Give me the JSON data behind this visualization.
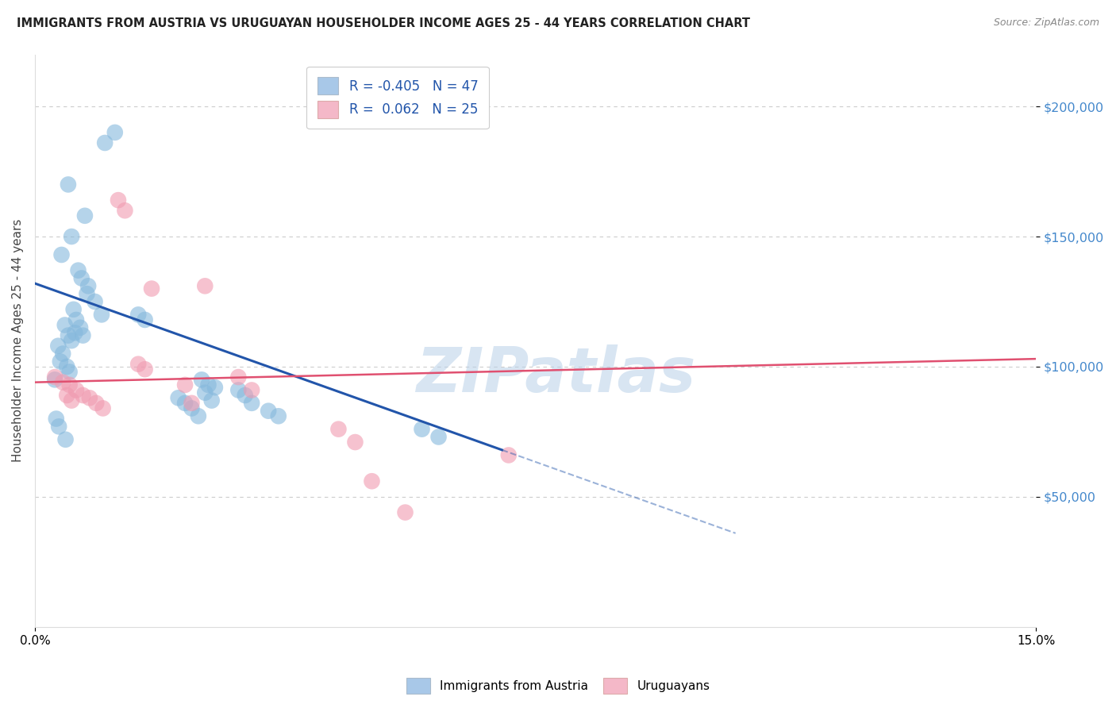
{
  "title": "IMMIGRANTS FROM AUSTRIA VS URUGUAYAN HOUSEHOLDER INCOME AGES 25 - 44 YEARS CORRELATION CHART",
  "source": "Source: ZipAtlas.com",
  "ylabel": "Householder Income Ages 25 - 44 years",
  "xlim": [
    0.0,
    15.0
  ],
  "ylim": [
    0,
    220000
  ],
  "yticks": [
    50000,
    100000,
    150000,
    200000
  ],
  "ytick_labels": [
    "$50,000",
    "$100,000",
    "$150,000",
    "$200,000"
  ],
  "xticks": [
    0.0,
    15.0
  ],
  "xtick_labels": [
    "0.0%",
    "15.0%"
  ],
  "legend1_label": "R = -0.405   N = 47",
  "legend2_label": "R =  0.062   N = 25",
  "legend1_color": "#a8c8e8",
  "legend2_color": "#f4b8c8",
  "scatter_blue_color": "#85b8dc",
  "scatter_pink_color": "#f09ab0",
  "line_blue_color": "#2255aa",
  "line_pink_color": "#e05070",
  "background_color": "#ffffff",
  "grid_color": "#cccccc",
  "watermark": "ZIPatlas",
  "title_color": "#222222",
  "source_color": "#888888",
  "ytick_color": "#4488cc",
  "ylabel_color": "#444444",
  "blue_scatter_x": [
    1.05,
    1.2,
    0.5,
    0.75,
    0.55,
    0.4,
    0.65,
    0.7,
    0.8,
    0.9,
    1.0,
    0.45,
    0.6,
    0.5,
    0.55,
    0.35,
    0.42,
    0.38,
    0.48,
    0.52,
    0.3,
    0.58,
    0.62,
    0.68,
    0.72,
    1.55,
    1.65,
    2.5,
    2.6,
    2.7,
    3.05,
    3.15,
    3.25,
    3.5,
    3.65,
    0.32,
    0.36,
    0.46,
    2.15,
    2.25,
    2.35,
    2.45,
    5.8,
    6.05,
    2.55,
    2.65,
    0.78
  ],
  "blue_scatter_y": [
    186000,
    190000,
    170000,
    158000,
    150000,
    143000,
    137000,
    134000,
    131000,
    125000,
    120000,
    116000,
    113000,
    112000,
    110000,
    108000,
    105000,
    102000,
    100000,
    98000,
    95000,
    122000,
    118000,
    115000,
    112000,
    120000,
    118000,
    95000,
    93000,
    92000,
    91000,
    89000,
    86000,
    83000,
    81000,
    80000,
    77000,
    72000,
    88000,
    86000,
    84000,
    81000,
    76000,
    73000,
    90000,
    87000,
    128000
  ],
  "pink_scatter_x": [
    0.3,
    0.42,
    0.52,
    0.62,
    0.72,
    0.82,
    0.92,
    1.02,
    0.55,
    1.55,
    1.65,
    1.75,
    2.55,
    3.05,
    3.25,
    4.55,
    5.05,
    5.55,
    7.1,
    2.25,
    2.35,
    1.25,
    1.35,
    4.8,
    0.48
  ],
  "pink_scatter_y": [
    96000,
    94000,
    93000,
    91000,
    89000,
    88000,
    86000,
    84000,
    87000,
    101000,
    99000,
    130000,
    131000,
    96000,
    91000,
    76000,
    56000,
    44000,
    66000,
    93000,
    86000,
    164000,
    160000,
    71000,
    89000
  ],
  "blue_line_x0": 0.0,
  "blue_line_y0": 132000,
  "blue_line_x1": 7.0,
  "blue_line_y1": 68000,
  "blue_dash_x0": 7.0,
  "blue_dash_y0": 68000,
  "blue_dash_x1": 10.5,
  "blue_dash_y1": 36000,
  "pink_line_x0": 0.0,
  "pink_line_y0": 94000,
  "pink_line_x1": 15.0,
  "pink_line_y1": 103000
}
